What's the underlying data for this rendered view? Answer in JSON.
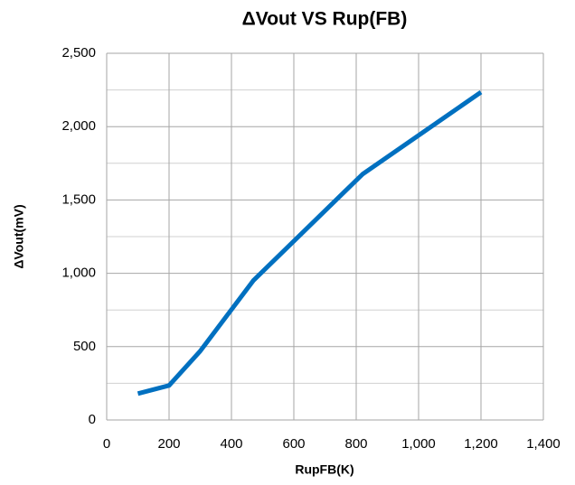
{
  "chart_data": {
    "type": "line",
    "title": "ΔVout VS Rup(FB)",
    "x_label": "RupFB(K)",
    "y_label": "ΔVout(mV)",
    "x": [
      100,
      200,
      300,
      470,
      820,
      1200
    ],
    "series": [
      {
        "name": "ΔVout",
        "color": "#0070c0",
        "values": [
          180,
          235,
          470,
          950,
          1675,
          2235
        ]
      }
    ],
    "xlim": [
      0,
      1400
    ],
    "xticks": [
      0,
      200,
      400,
      600,
      800,
      {
        "value": 1000,
        "label": "1,000"
      },
      {
        "value": 1200,
        "label": "1,200"
      },
      {
        "value": 1400,
        "label": "1,400"
      }
    ],
    "ylim": [
      0,
      2500
    ],
    "yticks": [
      0,
      500,
      {
        "value": 1000,
        "label": "1,000"
      },
      {
        "value": 1500,
        "label": "1,500"
      },
      {
        "value": 2000,
        "label": "2,000"
      },
      {
        "value": 2500,
        "label": "2,500"
      }
    ],
    "y_minor_ticks": [
      250,
      750,
      1250,
      1750,
      2250
    ],
    "grid": true
  }
}
